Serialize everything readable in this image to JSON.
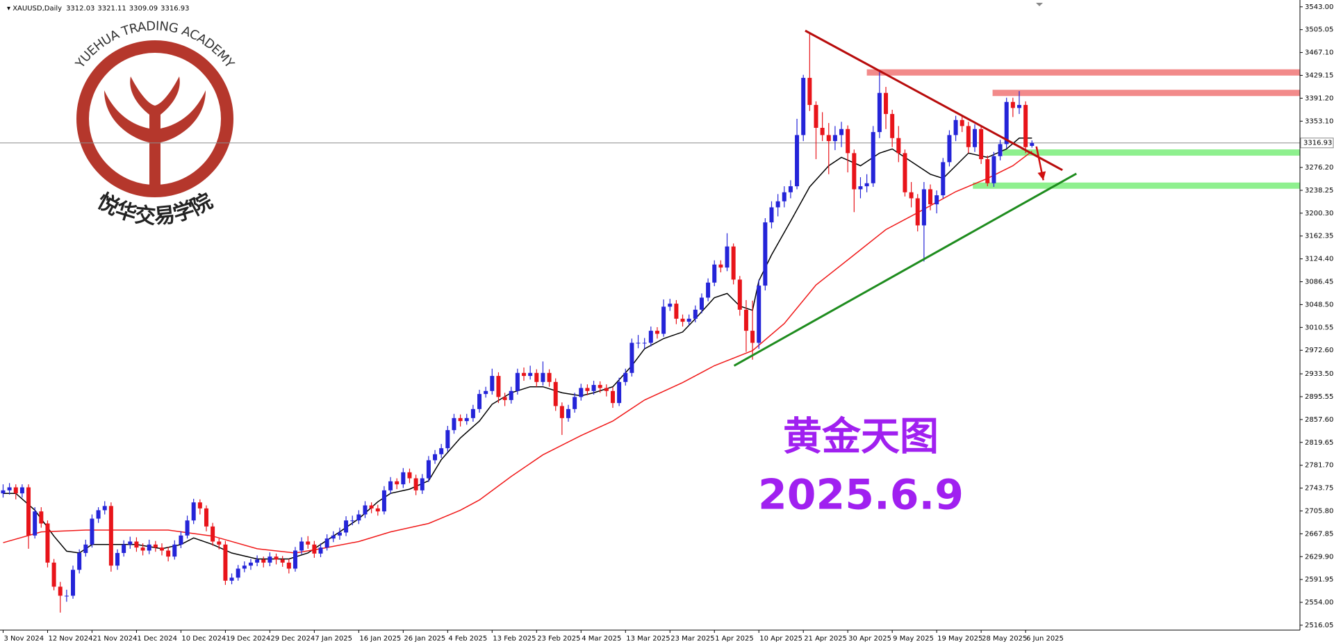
{
  "watermark": {
    "en": "YUEHUA TRADING ACADEMY",
    "cn": "悦华交易学院"
  },
  "chart_data": {
    "type": "candlestick",
    "symbol": "XAUUSD,Daily",
    "up_color": "#2424d8",
    "down_color": "#e8141a",
    "annotation_title": "黄金天图",
    "annotation_date": "2025.6.9",
    "annotation_color": "#a020f0",
    "xlim": [
      -0.49,
      204.2
    ],
    "ylim": [
      2507.9,
      3554.3
    ],
    "yticks": [
      {
        "value": 3543.0,
        "label": "3543.00"
      },
      {
        "value": 3505.05,
        "label": "3505.05"
      },
      {
        "value": 3467.1,
        "label": "3467.10"
      },
      {
        "value": 3429.15,
        "label": "3429.15"
      },
      {
        "value": 3391.2,
        "label": "3391.20"
      },
      {
        "value": 3353.1,
        "label": "3353.10"
      },
      {
        "value": 3276.2,
        "label": "3276.20"
      },
      {
        "value": 3238.25,
        "label": "3238.25"
      },
      {
        "value": 3200.3,
        "label": "3200.30"
      },
      {
        "value": 3162.35,
        "label": "3162.35"
      },
      {
        "value": 3124.4,
        "label": "3124.40"
      },
      {
        "value": 3086.45,
        "label": "3086.45"
      },
      {
        "value": 3048.5,
        "label": "3048.50"
      },
      {
        "value": 3010.55,
        "label": "3010.55"
      },
      {
        "value": 2972.6,
        "label": "2972.60"
      },
      {
        "value": 2933.5,
        "label": "2933.50"
      },
      {
        "value": 2895.55,
        "label": "2895.55"
      },
      {
        "value": 2857.6,
        "label": "2857.60"
      },
      {
        "value": 2819.65,
        "label": "2819.65"
      },
      {
        "value": 2781.7,
        "label": "2781.70"
      },
      {
        "value": 2743.75,
        "label": "2743.75"
      },
      {
        "value": 2705.8,
        "label": "2705.80"
      },
      {
        "value": 2667.85,
        "label": "2667.85"
      },
      {
        "value": 2629.9,
        "label": "2629.90"
      },
      {
        "value": 2591.95,
        "label": "2591.95"
      },
      {
        "value": 2554.0,
        "label": "2554.00"
      },
      {
        "value": 2516.05,
        "label": "2516.05"
      }
    ],
    "xticks": [
      {
        "value": 0,
        "label": "3 Nov 2024"
      },
      {
        "value": 7,
        "label": "12 Nov 2024"
      },
      {
        "value": 14,
        "label": "21 Nov 2024"
      },
      {
        "value": 21,
        "label": "1 Dec 2024"
      },
      {
        "value": 28,
        "label": "10 Dec 2024"
      },
      {
        "value": 35,
        "label": "19 Dec 2024"
      },
      {
        "value": 42,
        "label": "29 Dec 2024"
      },
      {
        "value": 49,
        "label": "7 Jan 2025"
      },
      {
        "value": 56,
        "label": "16 Jan 2025"
      },
      {
        "value": 63,
        "label": "26 Jan 2025"
      },
      {
        "value": 70,
        "label": "4 Feb 2025"
      },
      {
        "value": 77,
        "label": "13 Feb 2025"
      },
      {
        "value": 84,
        "label": "23 Feb 2025"
      },
      {
        "value": 91,
        "label": "4 Mar 2025"
      },
      {
        "value": 98,
        "label": "13 Mar 2025"
      },
      {
        "value": 105,
        "label": "23 Mar 2025"
      },
      {
        "value": 112,
        "label": "1 Apr 2025"
      },
      {
        "value": 119,
        "label": "10 Apr 2025"
      },
      {
        "value": 126,
        "label": "21 Apr 2025"
      },
      {
        "value": 133,
        "label": "30 Apr 2025"
      },
      {
        "value": 140,
        "label": "9 May 2025"
      },
      {
        "value": 147,
        "label": "19 May 2025"
      },
      {
        "value": 154,
        "label": "28 May 2025"
      },
      {
        "value": 161,
        "label": "6 Jun 2025"
      }
    ],
    "ohlc": [
      [
        2735,
        2750,
        2728,
        2740
      ],
      [
        2740,
        2752,
        2733,
        2745
      ],
      [
        2745,
        2750,
        2725,
        2735
      ],
      [
        2735,
        2750,
        2728,
        2745
      ],
      [
        2745,
        2750,
        2643,
        2665
      ],
      [
        2665,
        2712,
        2660,
        2705
      ],
      [
        2705,
        2712,
        2678,
        2685
      ],
      [
        2685,
        2690,
        2612,
        2620
      ],
      [
        2620,
        2626,
        2574,
        2580
      ],
      [
        2580,
        2588,
        2537,
        2565
      ],
      [
        2565,
        2575,
        2555,
        2565
      ],
      [
        2565,
        2615,
        2560,
        2608
      ],
      [
        2608,
        2642,
        2602,
        2636
      ],
      [
        2636,
        2658,
        2630,
        2650
      ],
      [
        2650,
        2700,
        2645,
        2693
      ],
      [
        2693,
        2712,
        2686,
        2707
      ],
      [
        2707,
        2722,
        2700,
        2714
      ],
      [
        2714,
        2720,
        2605,
        2615
      ],
      [
        2615,
        2642,
        2608,
        2636
      ],
      [
        2636,
        2657,
        2630,
        2650
      ],
      [
        2650,
        2663,
        2643,
        2655
      ],
      [
        2655,
        2662,
        2638,
        2645
      ],
      [
        2645,
        2652,
        2632,
        2640
      ],
      [
        2640,
        2658,
        2634,
        2650
      ],
      [
        2650,
        2656,
        2638,
        2645
      ],
      [
        2645,
        2652,
        2632,
        2640
      ],
      [
        2640,
        2646,
        2622,
        2630
      ],
      [
        2630,
        2657,
        2625,
        2650
      ],
      [
        2650,
        2672,
        2644,
        2665
      ],
      [
        2665,
        2698,
        2660,
        2690
      ],
      [
        2690,
        2726,
        2684,
        2720
      ],
      [
        2720,
        2725,
        2700,
        2710
      ],
      [
        2710,
        2715,
        2672,
        2680
      ],
      [
        2680,
        2686,
        2648,
        2655
      ],
      [
        2655,
        2660,
        2642,
        2650
      ],
      [
        2650,
        2656,
        2583,
        2590
      ],
      [
        2590,
        2602,
        2584,
        2595
      ],
      [
        2595,
        2616,
        2590,
        2610
      ],
      [
        2610,
        2622,
        2604,
        2615
      ],
      [
        2615,
        2626,
        2608,
        2620
      ],
      [
        2620,
        2632,
        2614,
        2625
      ],
      [
        2625,
        2630,
        2612,
        2620
      ],
      [
        2620,
        2637,
        2614,
        2630
      ],
      [
        2630,
        2635,
        2617,
        2625
      ],
      [
        2625,
        2631,
        2613,
        2620
      ],
      [
        2620,
        2626,
        2602,
        2610
      ],
      [
        2610,
        2646,
        2605,
        2640
      ],
      [
        2640,
        2662,
        2634,
        2655
      ],
      [
        2655,
        2664,
        2643,
        2650
      ],
      [
        2650,
        2656,
        2628,
        2635
      ],
      [
        2635,
        2652,
        2629,
        2645
      ],
      [
        2645,
        2667,
        2640,
        2660
      ],
      [
        2660,
        2672,
        2654,
        2665
      ],
      [
        2665,
        2678,
        2658,
        2670
      ],
      [
        2670,
        2697,
        2664,
        2690
      ],
      [
        2690,
        2698,
        2682,
        2690
      ],
      [
        2690,
        2707,
        2684,
        2700
      ],
      [
        2700,
        2722,
        2694,
        2715
      ],
      [
        2715,
        2720,
        2702,
        2710
      ],
      [
        2710,
        2716,
        2698,
        2705
      ],
      [
        2705,
        2747,
        2700,
        2740
      ],
      [
        2740,
        2762,
        2734,
        2755
      ],
      [
        2755,
        2760,
        2742,
        2750
      ],
      [
        2750,
        2777,
        2744,
        2770
      ],
      [
        2770,
        2776,
        2752,
        2760
      ],
      [
        2760,
        2766,
        2732,
        2740
      ],
      [
        2740,
        2767,
        2734,
        2760
      ],
      [
        2760,
        2797,
        2754,
        2790
      ],
      [
        2790,
        2807,
        2784,
        2800
      ],
      [
        2800,
        2817,
        2794,
        2810
      ],
      [
        2810,
        2847,
        2804,
        2840
      ],
      [
        2840,
        2867,
        2834,
        2860
      ],
      [
        2860,
        2866,
        2846,
        2855
      ],
      [
        2855,
        2867,
        2849,
        2860
      ],
      [
        2860,
        2882,
        2854,
        2875
      ],
      [
        2875,
        2907,
        2869,
        2900
      ],
      [
        2900,
        2912,
        2894,
        2905
      ],
      [
        2905,
        2942,
        2899,
        2930
      ],
      [
        2930,
        2936,
        2885,
        2895
      ],
      [
        2895,
        2902,
        2880,
        2890
      ],
      [
        2890,
        2912,
        2884,
        2905
      ],
      [
        2905,
        2942,
        2899,
        2935
      ],
      [
        2935,
        2944,
        2922,
        2930
      ],
      [
        2930,
        2947,
        2924,
        2935
      ],
      [
        2935,
        2941,
        2912,
        2920
      ],
      [
        2920,
        2954,
        2914,
        2935
      ],
      [
        2935,
        2941,
        2912,
        2920
      ],
      [
        2920,
        2926,
        2872,
        2880
      ],
      [
        2880,
        2886,
        2832,
        2860
      ],
      [
        2860,
        2882,
        2854,
        2875
      ],
      [
        2875,
        2902,
        2869,
        2895
      ],
      [
        2895,
        2917,
        2889,
        2910
      ],
      [
        2910,
        2916,
        2898,
        2905
      ],
      [
        2905,
        2922,
        2899,
        2915
      ],
      [
        2915,
        2921,
        2902,
        2910
      ],
      [
        2910,
        2916,
        2896,
        2905
      ],
      [
        2905,
        2911,
        2877,
        2885
      ],
      [
        2885,
        2927,
        2880,
        2920
      ],
      [
        2920,
        2942,
        2914,
        2935
      ],
      [
        2935,
        2992,
        2929,
        2985
      ],
      [
        2985,
        2998,
        2976,
        2985
      ],
      [
        2985,
        2993,
        2975,
        2985
      ],
      [
        2985,
        3012,
        2979,
        3005
      ],
      [
        3005,
        3011,
        2992,
        3000
      ],
      [
        3000,
        3057,
        2995,
        3045
      ],
      [
        3045,
        3058,
        3038,
        3050
      ],
      [
        3050,
        3056,
        3016,
        3025
      ],
      [
        3025,
        3032,
        3012,
        3020
      ],
      [
        3020,
        3032,
        3014,
        3025
      ],
      [
        3025,
        3047,
        3019,
        3040
      ],
      [
        3040,
        3067,
        3034,
        3060
      ],
      [
        3060,
        3092,
        3054,
        3085
      ],
      [
        3085,
        3122,
        3079,
        3115
      ],
      [
        3115,
        3122,
        3102,
        3110
      ],
      [
        3110,
        3167,
        3104,
        3145
      ],
      [
        3145,
        3150,
        3082,
        3090
      ],
      [
        3090,
        3096,
        3030,
        3040
      ],
      [
        3040,
        3056,
        2970,
        3005
      ],
      [
        3005,
        3055,
        2957,
        2985
      ],
      [
        2985,
        3090,
        2975,
        3080
      ],
      [
        3080,
        3192,
        3072,
        3185
      ],
      [
        3185,
        3220,
        3175,
        3210
      ],
      [
        3210,
        3232,
        3195,
        3220
      ],
      [
        3220,
        3245,
        3210,
        3235
      ],
      [
        3235,
        3255,
        3225,
        3245
      ],
      [
        3245,
        3357,
        3240,
        3330
      ],
      [
        3330,
        3430,
        3320,
        3425
      ],
      [
        3425,
        3500,
        3370,
        3380
      ],
      [
        3380,
        3386,
        3290,
        3342
      ],
      [
        3342,
        3368,
        3320,
        3330
      ],
      [
        3330,
        3350,
        3265,
        3320
      ],
      [
        3320,
        3345,
        3305,
        3330
      ],
      [
        3330,
        3352,
        3310,
        3340
      ],
      [
        3340,
        3346,
        3268,
        3300
      ],
      [
        3300,
        3306,
        3202,
        3240
      ],
      [
        3240,
        3260,
        3225,
        3245
      ],
      [
        3245,
        3265,
        3235,
        3250
      ],
      [
        3250,
        3345,
        3244,
        3335
      ],
      [
        3335,
        3435,
        3325,
        3400
      ],
      [
        3400,
        3410,
        3340,
        3365
      ],
      [
        3365,
        3372,
        3310,
        3325
      ],
      [
        3325,
        3345,
        3285,
        3300
      ],
      [
        3300,
        3306,
        3228,
        3235
      ],
      [
        3235,
        3252,
        3210,
        3225
      ],
      [
        3225,
        3232,
        3170,
        3180
      ],
      [
        3180,
        3252,
        3120,
        3240
      ],
      [
        3240,
        3248,
        3205,
        3215
      ],
      [
        3215,
        3238,
        3200,
        3230
      ],
      [
        3230,
        3292,
        3225,
        3285
      ],
      [
        3285,
        3338,
        3278,
        3330
      ],
      [
        3330,
        3362,
        3320,
        3355
      ],
      [
        3355,
        3362,
        3335,
        3345
      ],
      [
        3345,
        3352,
        3300,
        3310
      ],
      [
        3310,
        3348,
        3302,
        3340
      ],
      [
        3340,
        3346,
        3282,
        3290
      ],
      [
        3290,
        3296,
        3245,
        3250
      ],
      [
        3250,
        3302,
        3244,
        3295
      ],
      [
        3295,
        3322,
        3288,
        3315
      ],
      [
        3315,
        3392,
        3308,
        3385
      ],
      [
        3385,
        3392,
        3360,
        3375
      ],
      [
        3375,
        3403,
        3365,
        3380
      ],
      [
        3380,
        3386,
        3300,
        3310
      ],
      [
        3312.03,
        3321.11,
        3309.09,
        3316.93
      ]
    ],
    "last_price_color": "#8c8c8c",
    "moving_averages": [
      {
        "color": "#000000",
        "x": [
          0,
          2,
          5,
          8,
          10,
          12,
          14,
          17,
          21,
          25,
          28,
          30,
          33,
          36,
          40,
          45,
          48,
          50,
          53,
          56,
          59,
          61,
          64,
          67,
          69,
          72,
          75,
          77,
          80,
          83,
          85,
          88,
          91,
          93,
          96,
          99,
          101,
          104,
          107,
          109,
          112,
          114,
          116,
          118,
          119,
          121,
          124,
          127,
          130,
          132,
          135,
          138,
          140,
          143,
          146,
          148,
          150,
          152,
          155,
          158,
          160,
          162
        ],
        "values": [
          2735,
          2735,
          2707,
          2664,
          2639,
          2636,
          2650,
          2650,
          2650,
          2643,
          2650,
          2661,
          2650,
          2636,
          2626,
          2626,
          2636,
          2650,
          2671,
          2693,
          2721,
          2735,
          2742,
          2756,
          2791,
          2827,
          2855,
          2883,
          2902,
          2912,
          2912,
          2902,
          2897,
          2902,
          2912,
          2947,
          2975,
          2992,
          3003,
          3025,
          3060,
          3067,
          3046,
          3039,
          3088,
          3131,
          3187,
          3244,
          3279,
          3293,
          3279,
          3300,
          3307,
          3286,
          3265,
          3258,
          3279,
          3300,
          3293,
          3307,
          3325,
          3325
        ]
      },
      {
        "color": "#f01818",
        "x": [
          0,
          6,
          13,
          26,
          33,
          40,
          46,
          50,
          56,
          61,
          67,
          72,
          75,
          80,
          85,
          91,
          96,
          101,
          107,
          112,
          118,
          123,
          128,
          134,
          139,
          144,
          150,
          155,
          159,
          162
        ],
        "values": [
          2653,
          2671,
          2674,
          2674,
          2664,
          2643,
          2636,
          2643,
          2655,
          2671,
          2685,
          2707,
          2724,
          2763,
          2799,
          2831,
          2855,
          2890,
          2919,
          2947,
          2972,
          3017,
          3081,
          3131,
          3173,
          3201,
          3236,
          3258,
          3279,
          3303
        ]
      }
    ],
    "trendlines": [
      {
        "color": "#b80c0c",
        "x": [
          126.3,
          166.8
        ],
        "y": [
          3503.4,
          3271.8
        ]
      },
      {
        "color": "#1e8c1e",
        "x": [
          115.1,
          169.0
        ],
        "y": [
          2947,
          3266
        ]
      }
    ],
    "zones": [
      {
        "color": "#f28a8a",
        "x": [
          136,
          204.2
        ],
        "value": 3434
      },
      {
        "color": "#f28a8a",
        "x": [
          155.8,
          204.2
        ],
        "value": 3400
      },
      {
        "color": "#8ef08e",
        "x": [
          157.4,
          204.2
        ],
        "value": 3301
      },
      {
        "color": "#8ef08e",
        "x": [
          152.7,
          204.2
        ],
        "value": 3246
      }
    ],
    "arrow": {
      "color": "#d01010",
      "x": [
        162.7,
        163.8
      ],
      "y": [
        3311,
        3255
      ]
    }
  }
}
